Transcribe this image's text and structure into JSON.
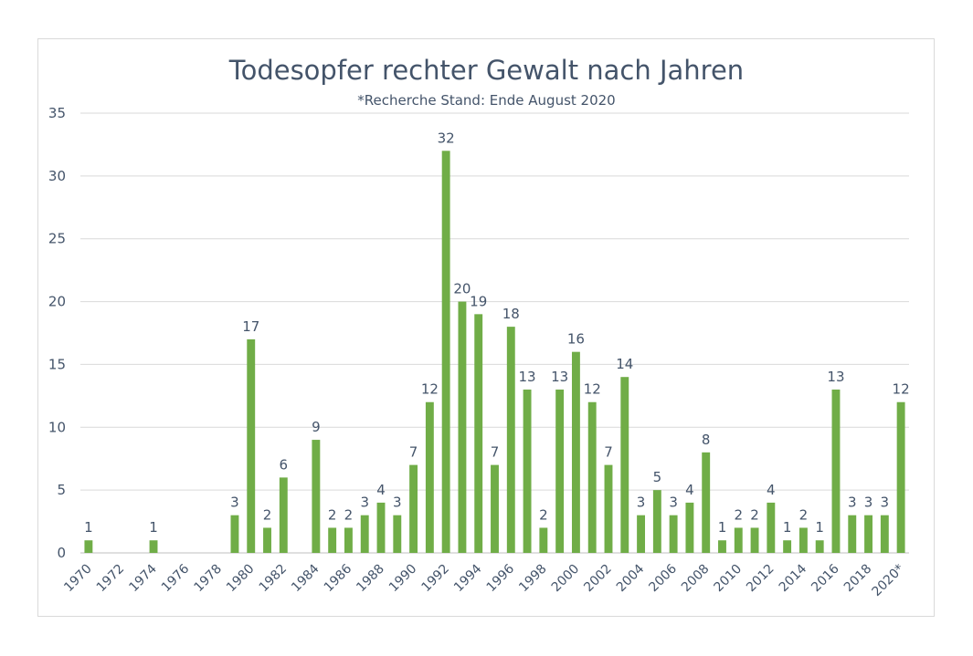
{
  "chart_data": {
    "type": "bar",
    "title": "Todesopfer rechter Gewalt nach Jahren",
    "subtitle": "*Recherche Stand: Ende August 2020",
    "xlabel": "",
    "ylabel": "",
    "ylim": [
      0,
      35
    ],
    "yticks": [
      0,
      5,
      10,
      15,
      20,
      25,
      30,
      35
    ],
    "grid": true,
    "legend": "none",
    "bar_color": "#70ad47",
    "categories": [
      "1970",
      "1971",
      "1972",
      "1973",
      "1974",
      "1975",
      "1976",
      "1977",
      "1978",
      "1979",
      "1980",
      "1981",
      "1982",
      "1983",
      "1984",
      "1985",
      "1986",
      "1987",
      "1988",
      "1989",
      "1990",
      "1991",
      "1992",
      "1993",
      "1994",
      "1995",
      "1996",
      "1997",
      "1998",
      "1999",
      "2000",
      "2001",
      "2002",
      "2003",
      "2004",
      "2005",
      "2006",
      "2007",
      "2008",
      "2009",
      "2010",
      "2011",
      "2012",
      "2013",
      "2014",
      "2015",
      "2016",
      "2017",
      "2018",
      "2019",
      "2020*"
    ],
    "values": [
      1,
      0,
      0,
      0,
      1,
      0,
      0,
      0,
      0,
      3,
      17,
      2,
      6,
      0,
      9,
      2,
      2,
      3,
      4,
      3,
      7,
      12,
      32,
      20,
      19,
      7,
      18,
      13,
      2,
      13,
      16,
      12,
      7,
      14,
      3,
      5,
      3,
      4,
      8,
      1,
      2,
      2,
      4,
      1,
      2,
      1,
      13,
      3,
      3,
      3,
      12
    ],
    "tick_labels": [
      "1970",
      "1972",
      "1974",
      "1976",
      "1978",
      "1980",
      "1982",
      "1984",
      "1986",
      "1988",
      "1990",
      "1992",
      "1994",
      "1996",
      "1998",
      "2000",
      "2002",
      "2004",
      "2006",
      "2008",
      "2010",
      "2012",
      "2014",
      "2016",
      "2018",
      "2020*"
    ]
  }
}
